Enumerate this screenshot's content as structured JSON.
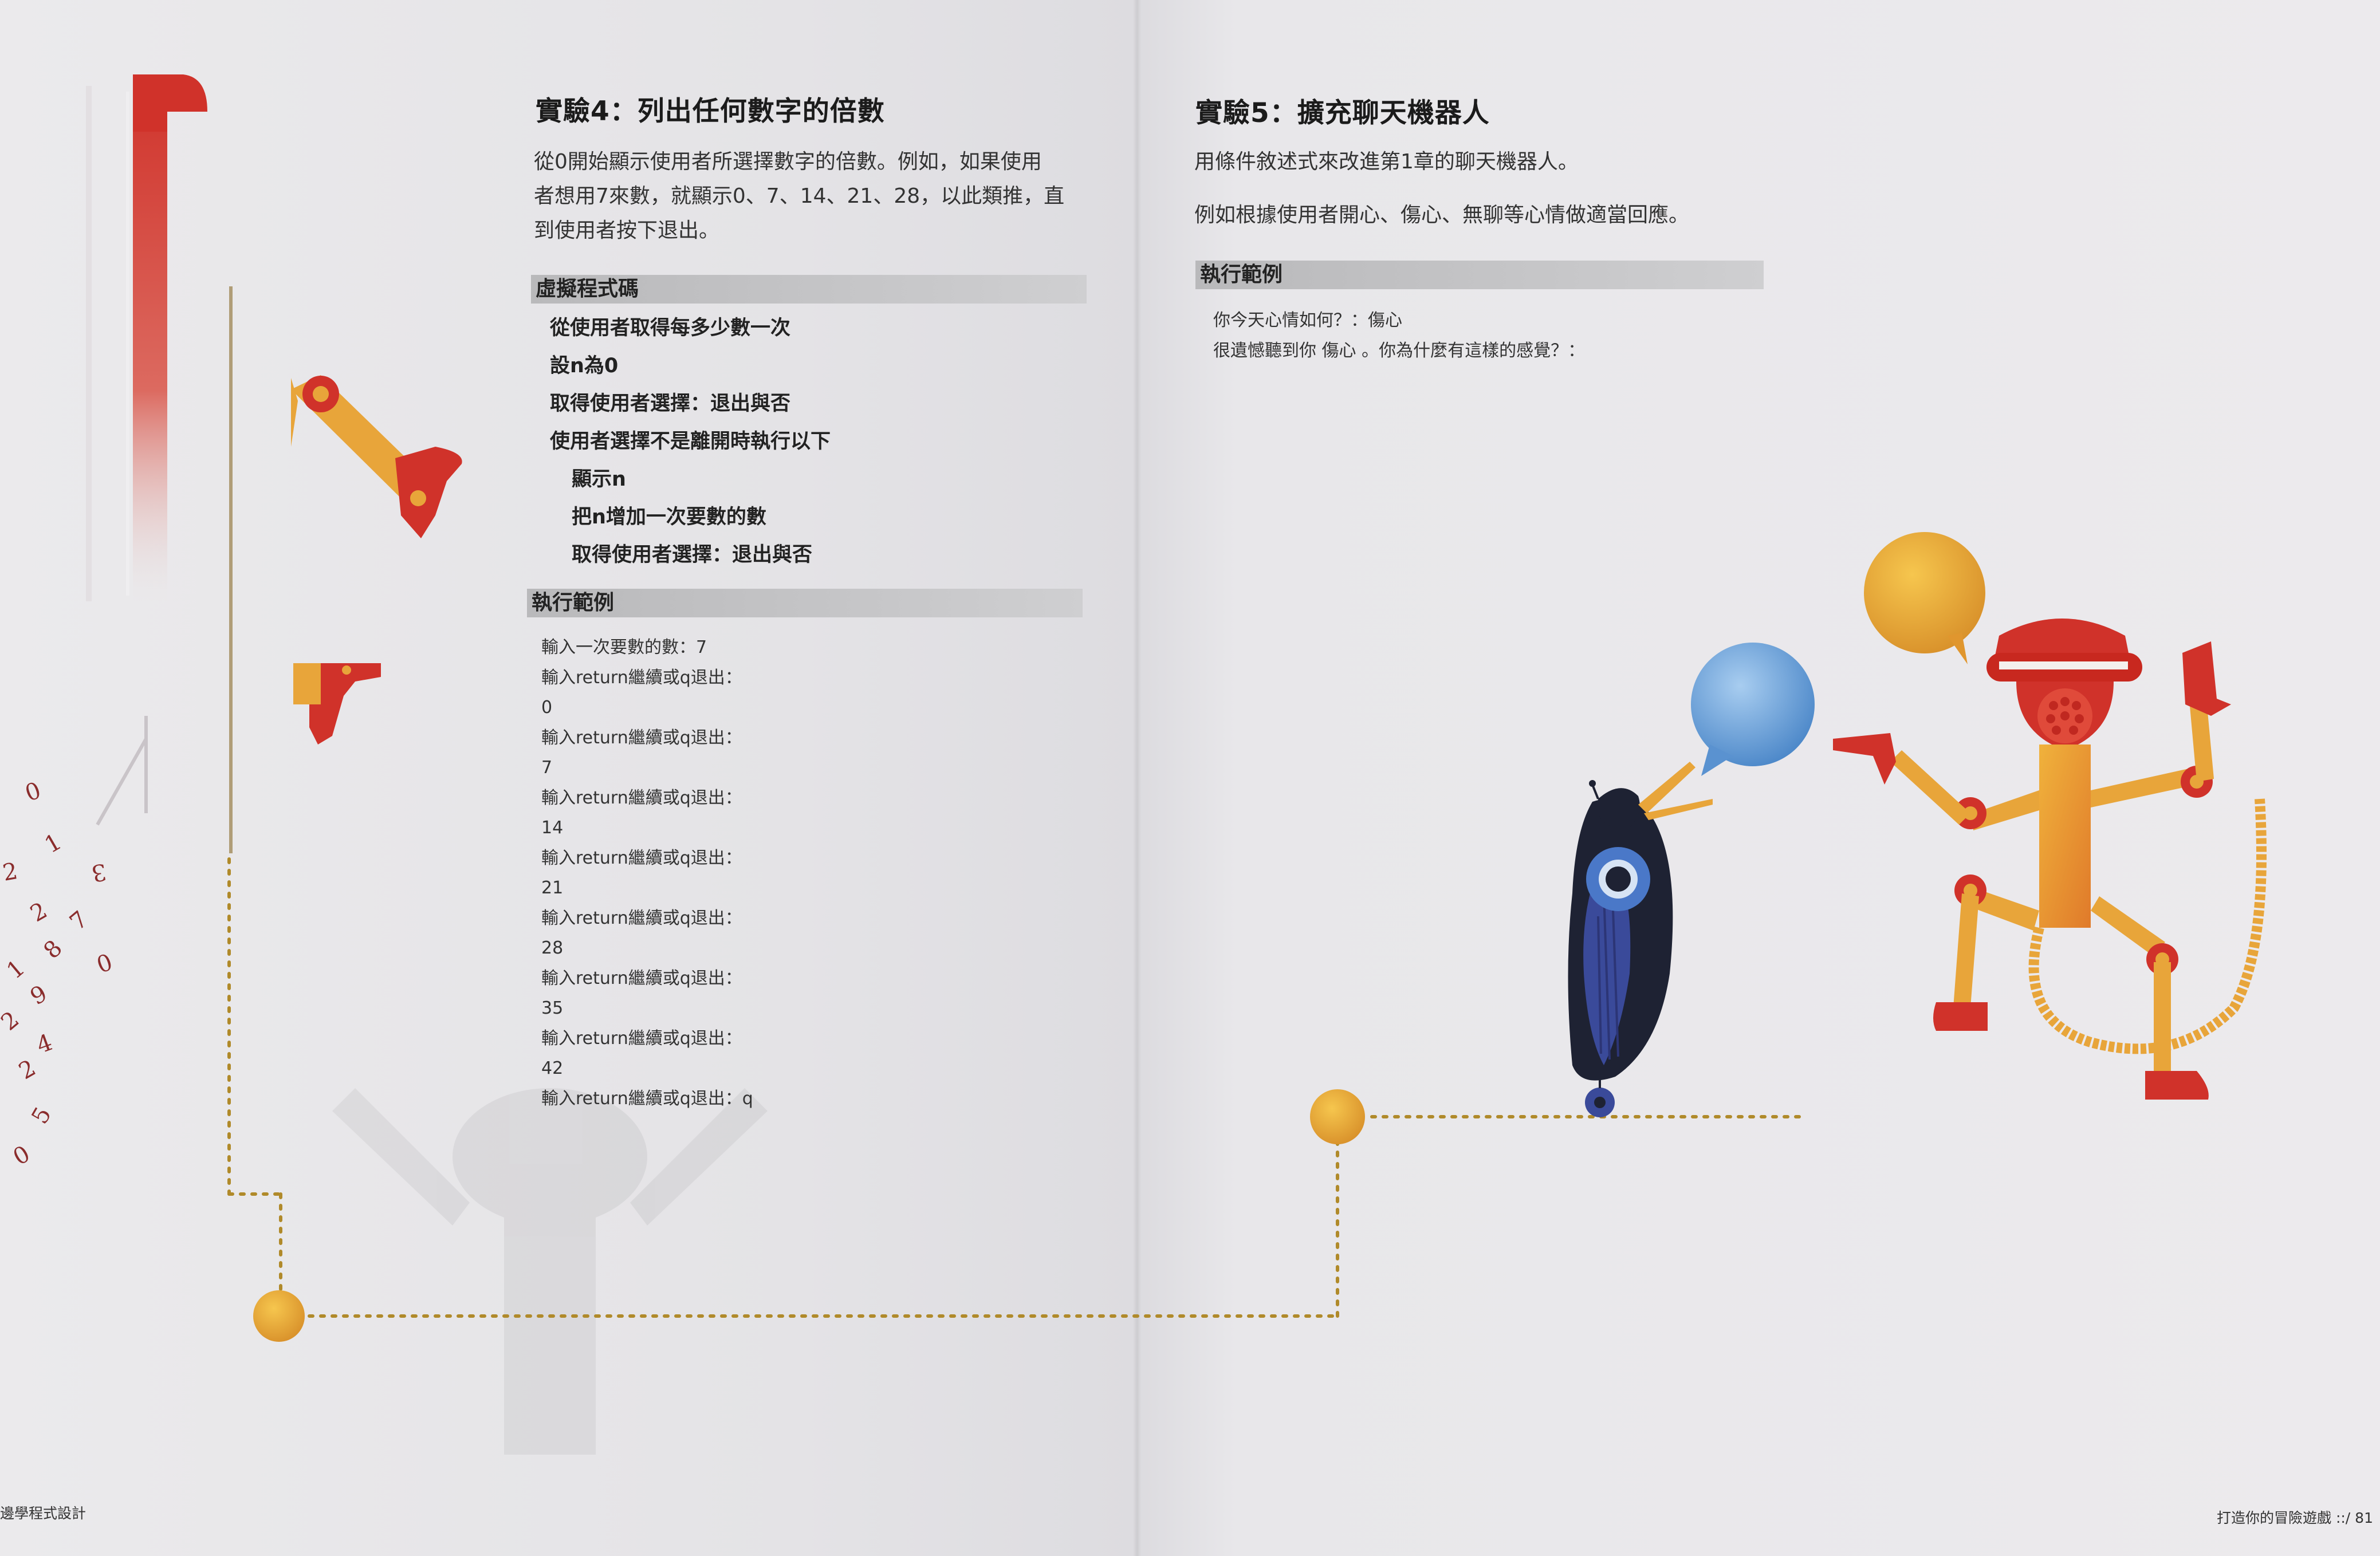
{
  "left_page": {
    "heading": "實驗4：列出任何數字的倍數",
    "description_lines": [
      "從0開始顯示使用者所選擇數字的倍數。例如，如果使用",
      "者想用7來數，就顯示0、7、14、21、28，以此類推，直",
      "到使用者按下退出。"
    ],
    "pseudocode_heading": "虛擬程式碼",
    "pseudocode_lines": [
      "從使用者取得每多少數一次",
      "設n為0",
      "取得使用者選擇：退出與否",
      "使用者選擇不是離開時執行以下",
      "顯示n",
      "把n增加一次要數的數",
      "取得使用者選擇：退出與否"
    ],
    "example_heading": "執行範例",
    "example_lines": [
      "輸入一次要數的數：7",
      "輸入return繼續或q退出：",
      "0",
      "輸入return繼續或q退出：",
      "7",
      "輸入return繼續或q退出：",
      "14",
      "輸入return繼續或q退出：",
      "21",
      "輸入return繼續或q退出：",
      "28",
      "輸入return繼續或q退出：",
      "35",
      "輸入return繼續或q退出：",
      "42",
      "輸入return繼續或q退出：q"
    ],
    "footer": "邊學程式設計",
    "decorative_digits": [
      "0",
      "1",
      "2",
      "3",
      "7",
      "2",
      "8",
      "0",
      "1",
      "9",
      "2",
      "4",
      "2",
      "5",
      "0"
    ]
  },
  "right_page": {
    "heading": "實驗5：擴充聊天機器人",
    "description_1": "用條件敘述式來改進第1章的聊天機器人。",
    "description_2": "例如根據使用者開心、傷心、無聊等心情做適當回應。",
    "example_heading": "執行範例",
    "example_lines": [
      "你今天心情如何？：傷心",
      "很遺憾聽到你 傷心 。你為什麼有這樣的感覺？："
    ],
    "footer": "打造你的冒險遊戲 ::/ 81"
  },
  "colors": {
    "accent_red": "#d0322a",
    "accent_orange": "#e8a53a",
    "dot_gold": "#b08a2a",
    "bubble_blue": "#6fa6dc",
    "bird_blue": "#3a4a9a"
  }
}
